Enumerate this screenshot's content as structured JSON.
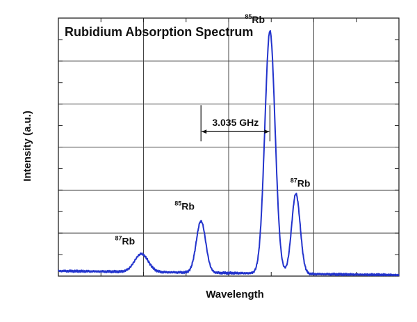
{
  "chart_data": {
    "type": "line",
    "title": "Rubidium Absorption Spectrum",
    "xlabel": "Wavelength",
    "ylabel": "Intensity (a.u.)",
    "xlim": [
      0,
      8
    ],
    "ylim": [
      0,
      10
    ],
    "grid": true,
    "x_tick_labels": "none",
    "y_tick_labels": "none",
    "series": [
      {
        "color": "#2233cc",
        "peaks": [
          {
            "x": 1.95,
            "height": 0.7,
            "width": 0.16,
            "label_mass": "87",
            "label_element": "Rb"
          },
          {
            "x": 3.35,
            "height": 2.0,
            "width": 0.11,
            "label_mass": "85",
            "label_element": "Rb"
          },
          {
            "x": 4.97,
            "height": 9.4,
            "width": 0.12,
            "label_mass": "85",
            "label_element": "Rb"
          },
          {
            "x": 5.58,
            "height": 3.1,
            "width": 0.1,
            "label_mass": "87",
            "label_element": "Rb"
          }
        ],
        "baseline": 0.2
      }
    ],
    "annotations": [
      {
        "text": "3.035 GHz",
        "from_x": 3.35,
        "to_x": 4.97,
        "y": 5.6
      }
    ]
  }
}
